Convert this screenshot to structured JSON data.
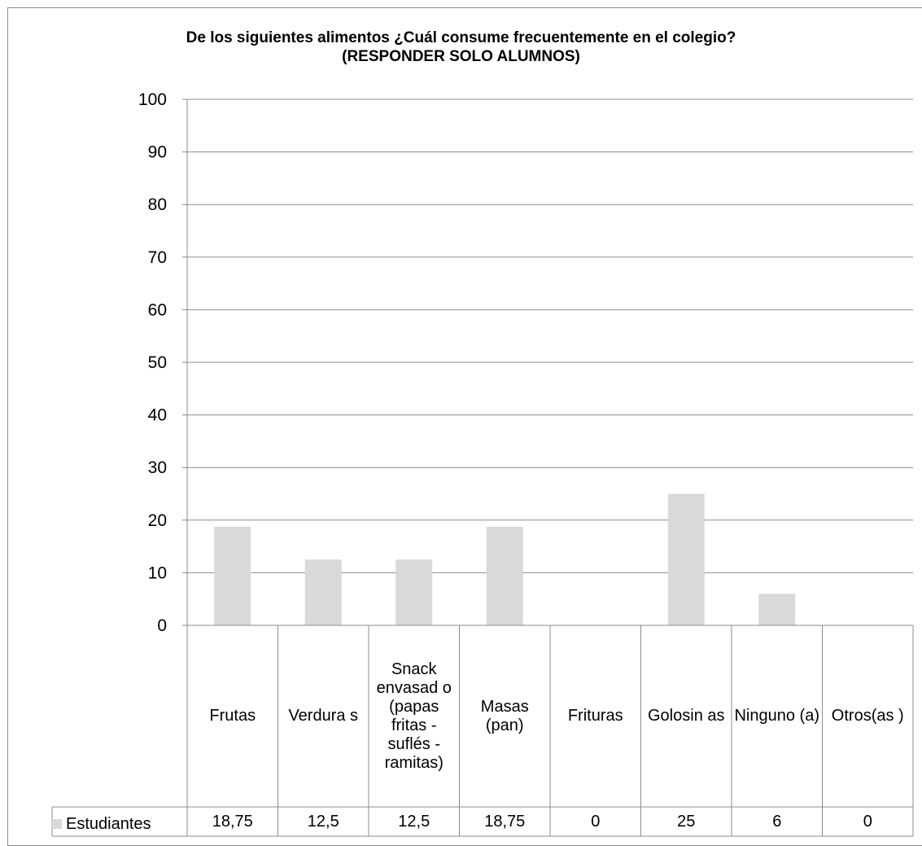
{
  "chart_data": {
    "type": "bar",
    "title": "De los siguientes alimentos ¿Cuál consume frecuentemente en el colegio?",
    "subtitle": "(RESPONDER SOLO ALUMNOS)",
    "categories": [
      "Frutas",
      "Verdura s",
      "Snack envasad o (papas fritas - suflés - ramitas)",
      "Masas (pan)",
      "Frituras",
      "Golosin as",
      "Ninguno (a)",
      "Otros(as )"
    ],
    "series": [
      {
        "name": "Estudiantes",
        "values": [
          18.75,
          12.5,
          12.5,
          18.75,
          0,
          25,
          6,
          0
        ],
        "labels": [
          "18,75",
          "12,5",
          "12,5",
          "18,75",
          "0",
          "25",
          "6",
          "0"
        ]
      }
    ],
    "ylim": [
      0,
      100
    ],
    "yticks": [
      "0",
      "10",
      "20",
      "30",
      "40",
      "50",
      "60",
      "70",
      "80",
      "90",
      "100"
    ],
    "grid": true,
    "legend": "data-table-left",
    "bar_color": "#d9d9d9",
    "grid_color": "#8c8c8c"
  }
}
